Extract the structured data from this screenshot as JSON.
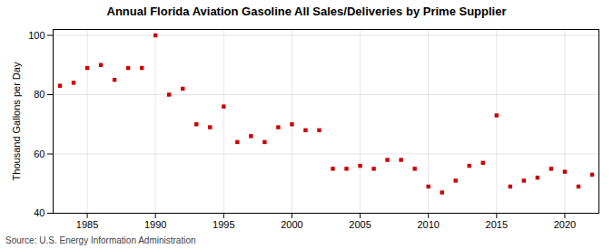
{
  "chart_data": {
    "type": "scatter",
    "title": "Annual Florida Aviation Gasoline All Sales/Deliveries by Prime Supplier",
    "ylabel": "Thousand Gallons per Day",
    "source": "Source: U.S. Energy Information Administration",
    "x": [
      1983,
      1984,
      1985,
      1986,
      1987,
      1988,
      1989,
      1990,
      1991,
      1992,
      1993,
      1994,
      1995,
      1996,
      1997,
      1998,
      1999,
      2000,
      2001,
      2002,
      2003,
      2004,
      2005,
      2006,
      2007,
      2008,
      2009,
      2010,
      2011,
      2012,
      2013,
      2014,
      2015,
      2016,
      2017,
      2018,
      2019,
      2020,
      2021,
      2022
    ],
    "values": [
      83,
      84,
      89,
      90,
      85,
      89,
      89,
      100,
      80,
      82,
      70,
      69,
      76,
      64,
      66,
      64,
      69,
      70,
      68,
      68,
      55,
      55,
      56,
      55,
      58,
      58,
      55,
      49,
      47,
      51,
      56,
      57,
      73,
      49,
      51,
      52,
      55,
      54,
      49,
      53
    ],
    "color": "#cc0000",
    "marker": "square",
    "xlim": [
      1982.5,
      2022.5
    ],
    "xticks": [
      1985,
      1990,
      1995,
      2000,
      2005,
      2010,
      2015,
      2020
    ],
    "ylim": [
      40,
      102
    ],
    "yticks": [
      40,
      60,
      80,
      100
    ],
    "grid": true
  }
}
